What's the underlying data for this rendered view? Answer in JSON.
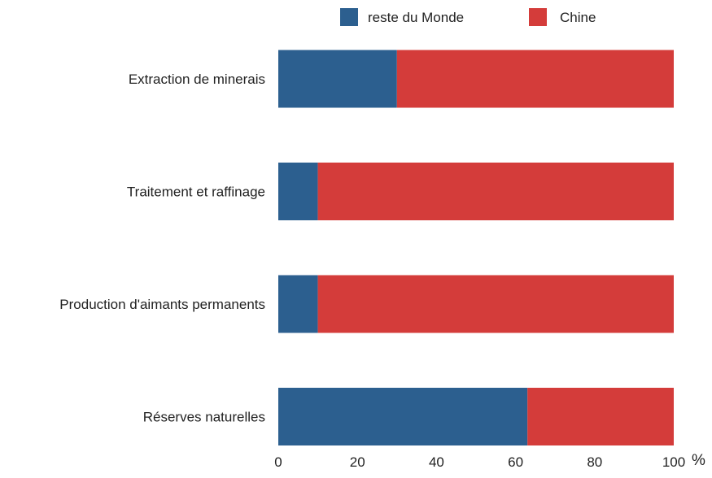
{
  "chart_data": {
    "type": "bar",
    "orientation": "horizontal",
    "stacked": true,
    "title": "",
    "xlabel": "",
    "ylabel": "",
    "x_unit": "%",
    "xlim": [
      0,
      100
    ],
    "x_ticks": [
      0,
      20,
      40,
      60,
      80,
      100
    ],
    "grid": false,
    "legend_position": "top-right",
    "categories": [
      "Extraction de minerais",
      "Traitement et raffinage",
      "Production d'aimants permanents",
      "Réserves naturelles"
    ],
    "series": [
      {
        "name": "reste du Monde",
        "color": "#2c5f8f",
        "values": [
          30,
          10,
          10,
          63
        ]
      },
      {
        "name": "Chine",
        "color": "#d43c3a",
        "values": [
          70,
          90,
          90,
          37
        ]
      }
    ]
  }
}
